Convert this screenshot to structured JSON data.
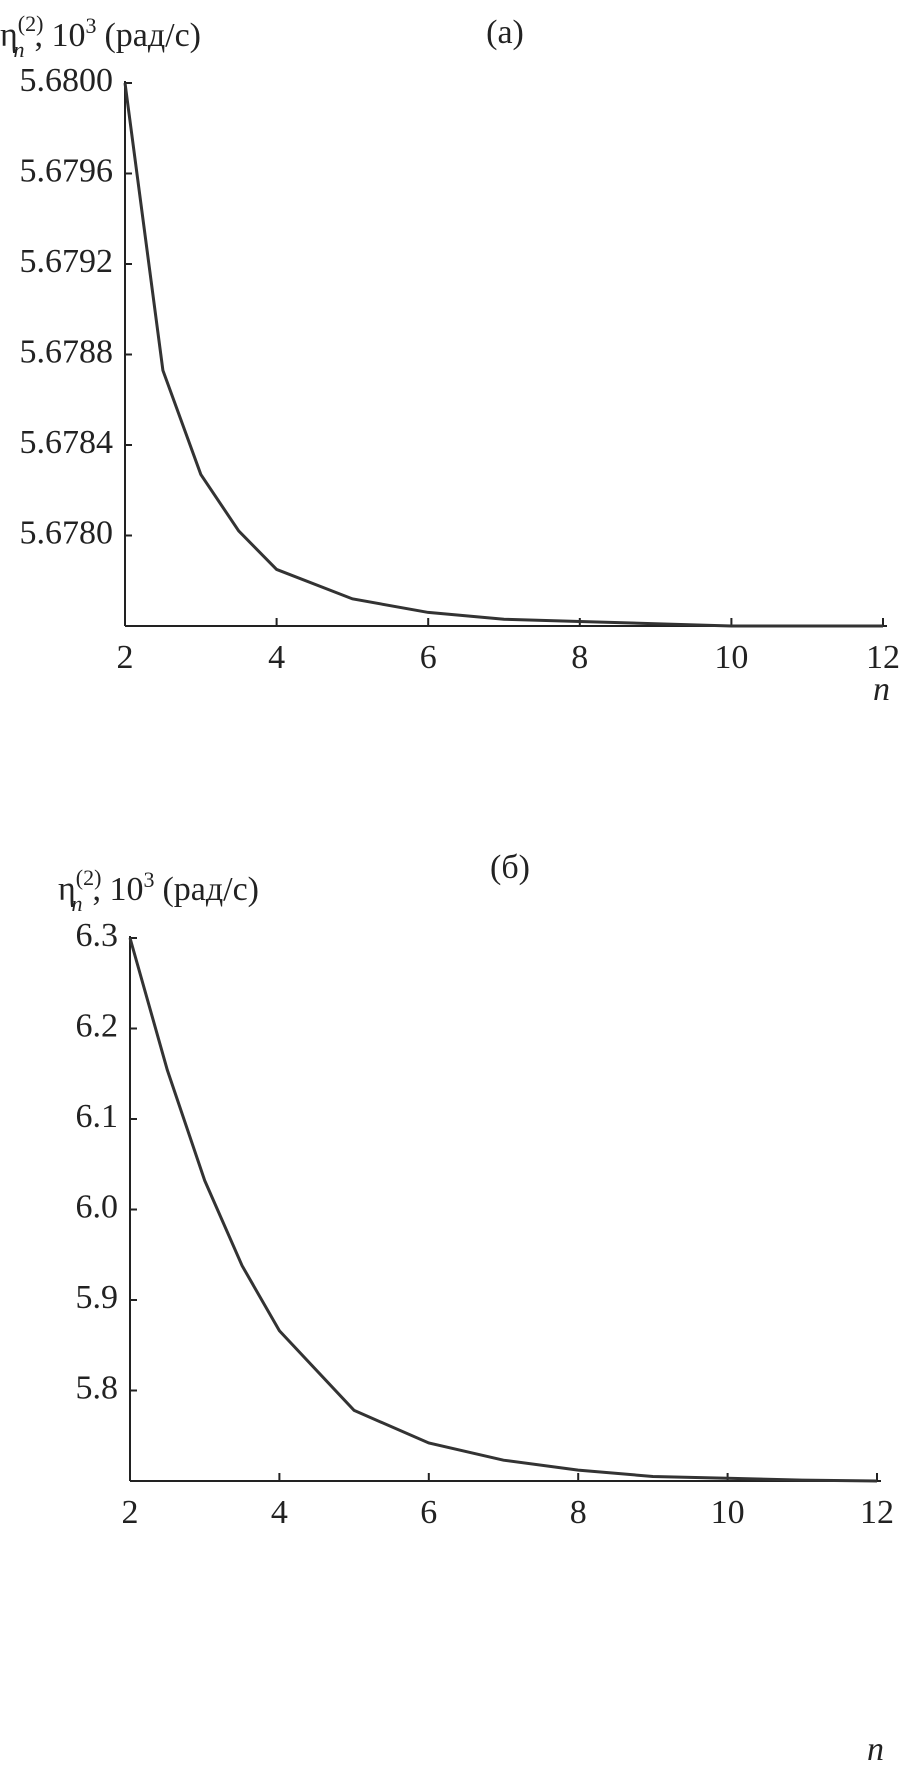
{
  "chart_data": [
    {
      "type": "line",
      "title": "(a)",
      "y_label": {
        "symbol": "η",
        "subscript": "n",
        "superscript": "(2)",
        "text": ", 10",
        "power": "3",
        "unit": "(рад/с)"
      },
      "x_label": "n",
      "x": [
        2,
        2.5,
        3,
        3.5,
        4,
        5,
        6,
        7,
        8,
        9,
        10,
        11,
        12
      ],
      "series": [
        {
          "color": "#333333",
          "values": [
            5.68,
            5.67873,
            5.67827,
            5.67802,
            5.67785,
            5.67772,
            5.67766,
            5.67763,
            5.67762,
            5.67761,
            5.6776,
            5.6776,
            5.6776
          ]
        }
      ],
      "xlim": [
        2,
        12
      ],
      "xticks": [
        2,
        4,
        6,
        8,
        10,
        12
      ],
      "ylim": [
        5.6776,
        5.68
      ],
      "yticks": [
        {
          "value": 5.678,
          "label": "5.6780"
        },
        5.6784,
        5.6788,
        5.6792,
        5.6796,
        {
          "value": 5.68,
          "label": "5.6800"
        }
      ],
      "grid": false
    },
    {
      "type": "line",
      "title": "(б)",
      "y_label": {
        "symbol": "η",
        "subscript": "n",
        "superscript": "(2)",
        "text": ", 10",
        "power": "3",
        "unit": "(рад/с)"
      },
      "x_label": "n",
      "x": [
        2,
        2.5,
        3,
        3.5,
        4,
        5,
        6,
        7,
        8,
        9,
        10,
        11,
        12
      ],
      "series": [
        {
          "color": "#333333",
          "values": [
            6.3,
            6.154,
            6.032,
            5.938,
            5.866,
            5.778,
            5.742,
            5.723,
            5.712,
            5.705,
            5.703,
            5.701,
            5.7
          ]
        }
      ],
      "xlim": [
        2,
        12
      ],
      "xticks": [
        2,
        4,
        6,
        8,
        10,
        12
      ],
      "ylim": [
        5.7,
        6.3
      ],
      "yticks": [
        5.8,
        5.9,
        {
          "value": 6.0,
          "label": "6.0"
        },
        6.1,
        6.2,
        6.3
      ],
      "grid": false
    }
  ]
}
